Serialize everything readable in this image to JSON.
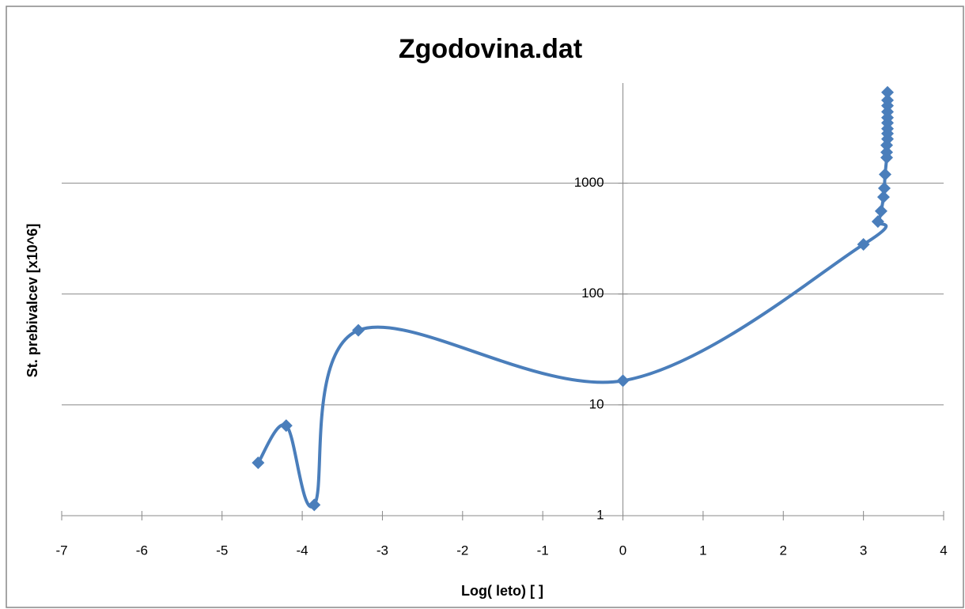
{
  "chart_data": {
    "type": "scatter",
    "title": "Zgodovina.dat",
    "x_label": "Log( leto) [   ]",
    "y_label": "St. prebivalcev [x10^6]",
    "series": [
      {
        "color": "#4a7ebb",
        "x": [
          -4.55,
          -4.2,
          -3.85,
          -3.3,
          0,
          3,
          3.18,
          3.22,
          3.25,
          3.26,
          3.27,
          3.29,
          3.29,
          3.29,
          3.3,
          3.3,
          3.3,
          3.3,
          3.3,
          3.3,
          3.3,
          3.3,
          3.3
        ],
        "values": [
          3,
          6.5,
          1.25,
          47,
          16.5,
          280,
          450,
          560,
          750,
          900,
          1200,
          1700,
          1900,
          2200,
          2500,
          2800,
          3100,
          3500,
          3900,
          4400,
          5000,
          5600,
          6600
        ]
      }
    ],
    "xlim": [
      -7,
      4
    ],
    "xticks": [
      -7,
      -6,
      -5,
      -4,
      -3,
      -2,
      -1,
      0,
      1,
      2,
      3,
      4
    ],
    "ylim": [
      1,
      8000
    ],
    "yticks": [
      1,
      10,
      100,
      1000
    ],
    "log_y": true,
    "grid": true,
    "smooth": true
  }
}
